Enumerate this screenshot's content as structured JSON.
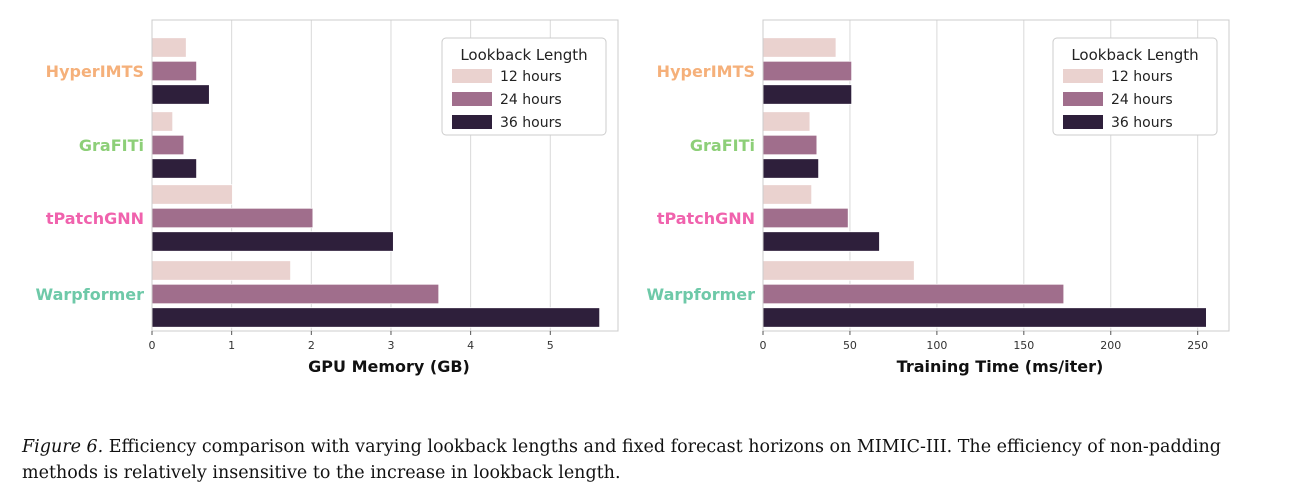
{
  "chart_data": [
    {
      "type": "bar",
      "orientation": "horizontal",
      "categories": [
        "HyperIMTS",
        "GraFITi",
        "tPatchGNN",
        "Warpformer"
      ],
      "series": [
        {
          "name": "12 hours",
          "values": [
            0.43,
            0.26,
            1.01,
            1.74
          ]
        },
        {
          "name": "24 hours",
          "values": [
            0.56,
            0.4,
            2.02,
            3.6
          ]
        },
        {
          "name": "36 hours",
          "values": [
            0.72,
            0.56,
            3.03,
            5.62
          ]
        }
      ],
      "xlabel": "GPU Memory (GB)",
      "xlim": [
        0,
        5.85
      ],
      "xticks": [
        0,
        1,
        2,
        3,
        4,
        5
      ],
      "grid": "vertical",
      "legend_title": "Lookback Length",
      "legend_position": "top-right"
    },
    {
      "type": "bar",
      "orientation": "horizontal",
      "categories": [
        "HyperIMTS",
        "GraFITi",
        "tPatchGNN",
        "Warpformer"
      ],
      "series": [
        {
          "name": "12 hours",
          "values": [
            42,
            27,
            28,
            87
          ]
        },
        {
          "name": "24 hours",
          "values": [
            51,
            31,
            49,
            173
          ]
        },
        {
          "name": "36 hours",
          "values": [
            51,
            32,
            67,
            255
          ]
        }
      ],
      "xlabel": "Training Time (ms/iter)",
      "xlim": [
        0,
        268
      ],
      "xticks": [
        0,
        50,
        100,
        150,
        200,
        250
      ],
      "grid": "vertical",
      "legend_title": "Lookback Length",
      "legend_position": "top-right"
    }
  ],
  "colors": {
    "series": [
      "#ead2cf",
      "#a06e8c",
      "#2e1f3b"
    ],
    "categories": {
      "HyperIMTS": "#f5b07a",
      "GraFITi": "#8dcf78",
      "tPatchGNN": "#f062ad",
      "Warpformer": "#6ec9a8"
    }
  },
  "caption": {
    "label": "Figure 6.",
    "text": "Efficiency comparison with varying lookback lengths and fixed forecast horizons on MIMIC-III. The efficiency of non-padding methods is relatively insensitive to the increase in lookback length."
  }
}
